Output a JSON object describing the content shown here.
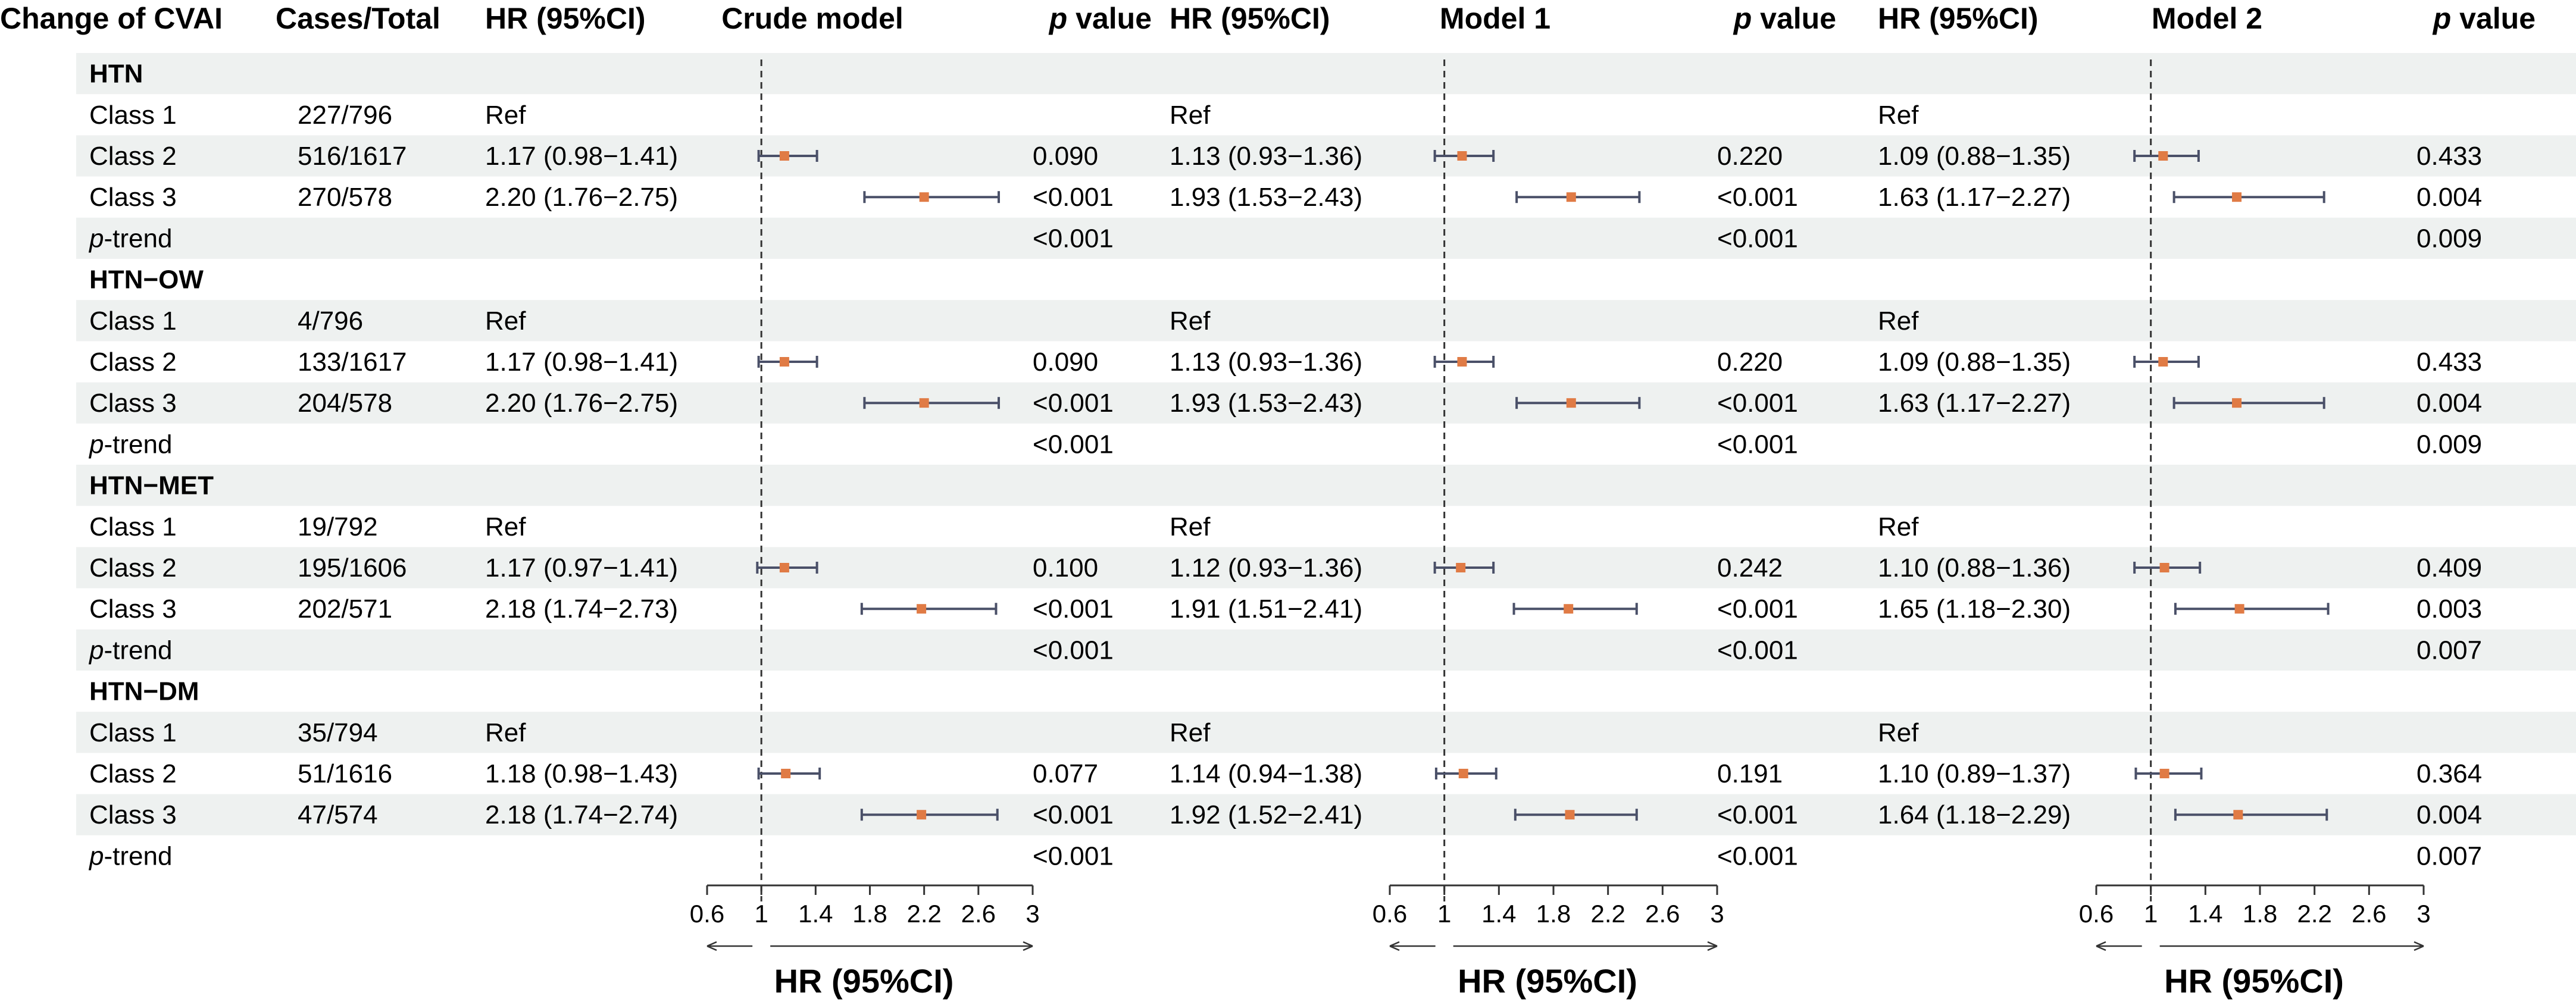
{
  "chart_data": {
    "type": "forest",
    "headers": {
      "label": "Change of CVAI",
      "cases": "Cases/Total",
      "hr": "HR (95%CI)",
      "pvalue_prefix": "p",
      "pvalue_suffix": " value",
      "models": [
        "Crude model",
        "Model 1",
        "Model 2"
      ]
    },
    "axis": {
      "title": "HR (95%CI)",
      "ticks": [
        "0.6",
        "1",
        "1.4",
        "1.8",
        "2.2",
        "2.6",
        "3"
      ],
      "range": [
        0.6,
        3
      ],
      "reference": 1
    },
    "colors": {
      "point": "#e07b45",
      "ci_line": "#4a5068",
      "band": "#eef1f0",
      "ref_line": "#333333"
    },
    "rows": [
      {
        "type": "group",
        "label": "HTN"
      },
      {
        "type": "row",
        "label": "Class 1",
        "cases": "227/796",
        "models": [
          {
            "text": "Ref",
            "p": ""
          },
          {
            "text": "Ref",
            "p": ""
          },
          {
            "text": "Ref",
            "p": ""
          }
        ]
      },
      {
        "type": "row",
        "label": "Class 2",
        "cases": "516/1617",
        "models": [
          {
            "text": "1.17 (0.98−1.41)",
            "hr": 1.17,
            "lo": 0.98,
            "hi": 1.41,
            "p": "0.090"
          },
          {
            "text": "1.13 (0.93−1.36)",
            "hr": 1.13,
            "lo": 0.93,
            "hi": 1.36,
            "p": "0.220"
          },
          {
            "text": "1.09 (0.88−1.35)",
            "hr": 1.09,
            "lo": 0.88,
            "hi": 1.35,
            "p": "0.433"
          }
        ]
      },
      {
        "type": "row",
        "label": "Class 3",
        "cases": "270/578",
        "models": [
          {
            "text": "2.20 (1.76−2.75)",
            "hr": 2.2,
            "lo": 1.76,
            "hi": 2.75,
            "p": "<0.001"
          },
          {
            "text": "1.93 (1.53−2.43)",
            "hr": 1.93,
            "lo": 1.53,
            "hi": 2.43,
            "p": "<0.001"
          },
          {
            "text": "1.63 (1.17−2.27)",
            "hr": 1.63,
            "lo": 1.17,
            "hi": 2.27,
            "p": "0.004"
          }
        ]
      },
      {
        "type": "trend",
        "label_prefix": "p",
        "label_suffix": "-trend",
        "models": [
          {
            "p": "<0.001"
          },
          {
            "p": "<0.001"
          },
          {
            "p": "0.009"
          }
        ]
      },
      {
        "type": "group",
        "label": "HTN−OW"
      },
      {
        "type": "row",
        "label": "Class 1",
        "cases": "4/796",
        "models": [
          {
            "text": "Ref",
            "p": ""
          },
          {
            "text": "Ref",
            "p": ""
          },
          {
            "text": "Ref",
            "p": ""
          }
        ]
      },
      {
        "type": "row",
        "label": "Class 2",
        "cases": "133/1617",
        "models": [
          {
            "text": "1.17 (0.98−1.41)",
            "hr": 1.17,
            "lo": 0.98,
            "hi": 1.41,
            "p": "0.090"
          },
          {
            "text": "1.13 (0.93−1.36)",
            "hr": 1.13,
            "lo": 0.93,
            "hi": 1.36,
            "p": "0.220"
          },
          {
            "text": "1.09 (0.88−1.35)",
            "hr": 1.09,
            "lo": 0.88,
            "hi": 1.35,
            "p": "0.433"
          }
        ]
      },
      {
        "type": "row",
        "label": "Class 3",
        "cases": "204/578",
        "models": [
          {
            "text": "2.20 (1.76−2.75)",
            "hr": 2.2,
            "lo": 1.76,
            "hi": 2.75,
            "p": "<0.001"
          },
          {
            "text": "1.93 (1.53−2.43)",
            "hr": 1.93,
            "lo": 1.53,
            "hi": 2.43,
            "p": "<0.001"
          },
          {
            "text": "1.63 (1.17−2.27)",
            "hr": 1.63,
            "lo": 1.17,
            "hi": 2.27,
            "p": "0.004"
          }
        ]
      },
      {
        "type": "trend",
        "label_prefix": "p",
        "label_suffix": "-trend",
        "models": [
          {
            "p": "<0.001"
          },
          {
            "p": "<0.001"
          },
          {
            "p": "0.009"
          }
        ]
      },
      {
        "type": "group",
        "label": "HTN−MET"
      },
      {
        "type": "row",
        "label": "Class 1",
        "cases": "19/792",
        "models": [
          {
            "text": "Ref",
            "p": ""
          },
          {
            "text": "Ref",
            "p": ""
          },
          {
            "text": "Ref",
            "p": ""
          }
        ]
      },
      {
        "type": "row",
        "label": "Class 2",
        "cases": "195/1606",
        "models": [
          {
            "text": "1.17 (0.97−1.41)",
            "hr": 1.17,
            "lo": 0.97,
            "hi": 1.41,
            "p": "0.100"
          },
          {
            "text": "1.12 (0.93−1.36)",
            "hr": 1.12,
            "lo": 0.93,
            "hi": 1.36,
            "p": "0.242"
          },
          {
            "text": "1.10 (0.88−1.36)",
            "hr": 1.1,
            "lo": 0.88,
            "hi": 1.36,
            "p": "0.409"
          }
        ]
      },
      {
        "type": "row",
        "label": "Class 3",
        "cases": "202/571",
        "models": [
          {
            "text": "2.18 (1.74−2.73)",
            "hr": 2.18,
            "lo": 1.74,
            "hi": 2.73,
            "p": "<0.001"
          },
          {
            "text": "1.91 (1.51−2.41)",
            "hr": 1.91,
            "lo": 1.51,
            "hi": 2.41,
            "p": "<0.001"
          },
          {
            "text": "1.65 (1.18−2.30)",
            "hr": 1.65,
            "lo": 1.18,
            "hi": 2.3,
            "p": "0.003"
          }
        ]
      },
      {
        "type": "trend",
        "label_prefix": "p",
        "label_suffix": "-trend",
        "models": [
          {
            "p": "<0.001"
          },
          {
            "p": "<0.001"
          },
          {
            "p": "0.007"
          }
        ]
      },
      {
        "type": "group",
        "label": "HTN−DM"
      },
      {
        "type": "row",
        "label": "Class 1",
        "cases": "35/794",
        "models": [
          {
            "text": "Ref",
            "p": ""
          },
          {
            "text": "Ref",
            "p": ""
          },
          {
            "text": "Ref",
            "p": ""
          }
        ]
      },
      {
        "type": "row",
        "label": "Class 2",
        "cases": "51/1616",
        "models": [
          {
            "text": "1.18 (0.98−1.43)",
            "hr": 1.18,
            "lo": 0.98,
            "hi": 1.43,
            "p": "0.077"
          },
          {
            "text": "1.14 (0.94−1.38)",
            "hr": 1.14,
            "lo": 0.94,
            "hi": 1.38,
            "p": "0.191"
          },
          {
            "text": "1.10 (0.89−1.37)",
            "hr": 1.1,
            "lo": 0.89,
            "hi": 1.37,
            "p": "0.364"
          }
        ]
      },
      {
        "type": "row",
        "label": "Class 3",
        "cases": "47/574",
        "models": [
          {
            "text": "2.18 (1.74−2.74)",
            "hr": 2.18,
            "lo": 1.74,
            "hi": 2.74,
            "p": "<0.001"
          },
          {
            "text": "1.92 (1.52−2.41)",
            "hr": 1.92,
            "lo": 1.52,
            "hi": 2.41,
            "p": "<0.001"
          },
          {
            "text": "1.64 (1.18−2.29)",
            "hr": 1.64,
            "lo": 1.18,
            "hi": 2.29,
            "p": "0.004"
          }
        ]
      },
      {
        "type": "trend",
        "label_prefix": "p",
        "label_suffix": "-trend",
        "models": [
          {
            "p": "<0.001"
          },
          {
            "p": "<0.001"
          },
          {
            "p": "0.007"
          }
        ]
      }
    ]
  }
}
